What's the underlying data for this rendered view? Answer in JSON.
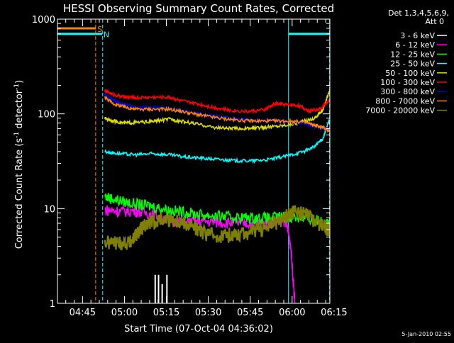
{
  "chart_data": {
    "type": "line",
    "title": "HESSI Observing Summary Count Rates, Corrected",
    "xlabel": "Start Time (07-Oct-04 04:36:02)",
    "ylabel_parts": [
      "Corrected Count Rate (s",
      "-1",
      " detector",
      "-1",
      ")"
    ],
    "yscale": "log",
    "ylim": [
      1,
      1000
    ],
    "xlim": [
      36.03,
      133.5
    ],
    "x_unit": "minutes after 04:00 UT",
    "x_ticks": [
      {
        "value": 45,
        "label": "04:45"
      },
      {
        "value": 60,
        "label": "05:00"
      },
      {
        "value": 75,
        "label": "05:15"
      },
      {
        "value": 90,
        "label": "05:30"
      },
      {
        "value": 105,
        "label": "05:45"
      },
      {
        "value": 120,
        "label": "06:00"
      },
      {
        "value": 135,
        "label": "06:15"
      }
    ],
    "y_ticks": [
      {
        "value": 1,
        "label": "1"
      },
      {
        "value": 10,
        "label": "10"
      },
      {
        "value": 100,
        "label": "100"
      },
      {
        "value": 1000,
        "label": "1000"
      }
    ],
    "legend_header": [
      "Det 1,3,4,5,6,9,",
      "Att 0"
    ],
    "legend_placement": "right",
    "series": [
      {
        "name": "3 - 6 keV",
        "color": "#ffffff",
        "x": [
          71,
          72.2,
          73.5,
          75.2
        ],
        "y": [
          2,
          2,
          1.6,
          2
        ]
      },
      {
        "name": "6 - 12 keV",
        "color": "#ff00ff",
        "x": [
          53,
          58,
          64,
          70,
          76,
          82,
          88,
          94,
          100,
          106,
          112,
          116,
          118,
          119.5,
          121
        ],
        "y": [
          9.7,
          9.4,
          9.5,
          8.8,
          7.6,
          7.2,
          7.4,
          7.2,
          7.1,
          7.0,
          7.2,
          7.5,
          7.3,
          4,
          1
        ]
      },
      {
        "name": "12 - 25 keV",
        "color": "#00ff00",
        "x": [
          53,
          58,
          64,
          70,
          76,
          82,
          88,
          94,
          100,
          106,
          112,
          118,
          124,
          128,
          132,
          133.3
        ],
        "y": [
          13.5,
          12.2,
          11.2,
          10.6,
          9.7,
          9.1,
          8.6,
          8.3,
          8.1,
          8.0,
          8.0,
          8.3,
          8.0,
          7.6,
          7.2,
          6.5
        ]
      },
      {
        "name": "25 - 50 keV",
        "color": "#00ffff",
        "x": [
          53,
          58,
          64,
          70,
          76,
          82,
          88,
          94,
          100,
          106,
          112,
          118,
          124,
          128,
          131,
          133.3
        ],
        "y": [
          40,
          38,
          37,
          38,
          37,
          35,
          34,
          33,
          32,
          32,
          33,
          36,
          40,
          45,
          55,
          85
        ]
      },
      {
        "name": "50 - 100 keV",
        "color": "#dddd00",
        "x": [
          53,
          56,
          60,
          64,
          70,
          76,
          80,
          86,
          92,
          98,
          104,
          110,
          116,
          122,
          128,
          131,
          133.3
        ],
        "y": [
          90,
          84,
          80,
          81,
          83,
          88,
          84,
          78,
          72,
          70,
          70,
          72,
          75,
          80,
          90,
          110,
          175
        ]
      },
      {
        "name": "100 - 300 keV",
        "color": "#ff0000",
        "x": [
          53,
          56,
          60,
          64,
          70,
          76,
          80,
          86,
          92,
          98,
          104,
          110,
          114,
          118,
          122,
          126,
          130,
          133.3
        ],
        "y": [
          175,
          160,
          150,
          148,
          150,
          150,
          138,
          128,
          117,
          109,
          106,
          110,
          128,
          125,
          123,
          108,
          112,
          140
        ]
      },
      {
        "name": "300 - 800 keV",
        "color": "#0000dd",
        "x": [
          53,
          56,
          60,
          64,
          70,
          76,
          82,
          88,
          94,
          100,
          106,
          112,
          118,
          124,
          128,
          131,
          133.3
        ],
        "y": [
          160,
          140,
          125,
          118,
          116,
          114,
          106,
          98,
          93,
          89,
          86,
          85,
          83,
          80,
          75,
          70,
          68
        ]
      },
      {
        "name": "800 - 7000 keV",
        "color": "#ff8000",
        "x": [
          53,
          56,
          60,
          64,
          70,
          76,
          82,
          88,
          94,
          100,
          106,
          112,
          118,
          124,
          128,
          131,
          133.3
        ],
        "y": [
          150,
          128,
          118,
          112,
          112,
          112,
          104,
          96,
          90,
          86,
          84,
          84,
          84,
          82,
          76,
          72,
          66
        ]
      },
      {
        "name": "7000 - 20000 keV",
        "color": "#808000",
        "x": [
          53,
          58,
          62,
          64,
          66,
          68,
          72,
          76,
          80,
          84,
          88,
          94,
          100,
          106,
          112,
          116,
          120,
          124,
          128,
          132,
          133.3
        ],
        "y": [
          4.4,
          4.4,
          4.4,
          5.2,
          6.2,
          6.8,
          7.6,
          7.8,
          7.4,
          6.6,
          5.6,
          5.2,
          5.4,
          5.8,
          6.6,
          7.6,
          9.2,
          9.0,
          7.6,
          6.4,
          6.0
        ]
      }
    ],
    "flags": [
      {
        "label": "S",
        "color": "#ff8000",
        "value": 800,
        "spans": [
          [
            36.03,
            49.8
          ]
        ]
      },
      {
        "label": "N",
        "color": "#00ffff",
        "value": 700,
        "spans": [
          [
            36.03,
            52
          ],
          [
            118.7,
            133.5
          ]
        ]
      }
    ],
    "markers": [
      {
        "x": 49.7,
        "color": "#ff8000",
        "style": "dashed"
      },
      {
        "x": 52.2,
        "color": "#00ffff",
        "style": "dashed"
      },
      {
        "x": 118.7,
        "color": "#00ffff",
        "style": "solid"
      },
      {
        "x": 133.4,
        "color": "#00ffff",
        "style": "dashed"
      }
    ]
  },
  "footer": {
    "timestamp": "5-Jan-2010 02:55"
  }
}
